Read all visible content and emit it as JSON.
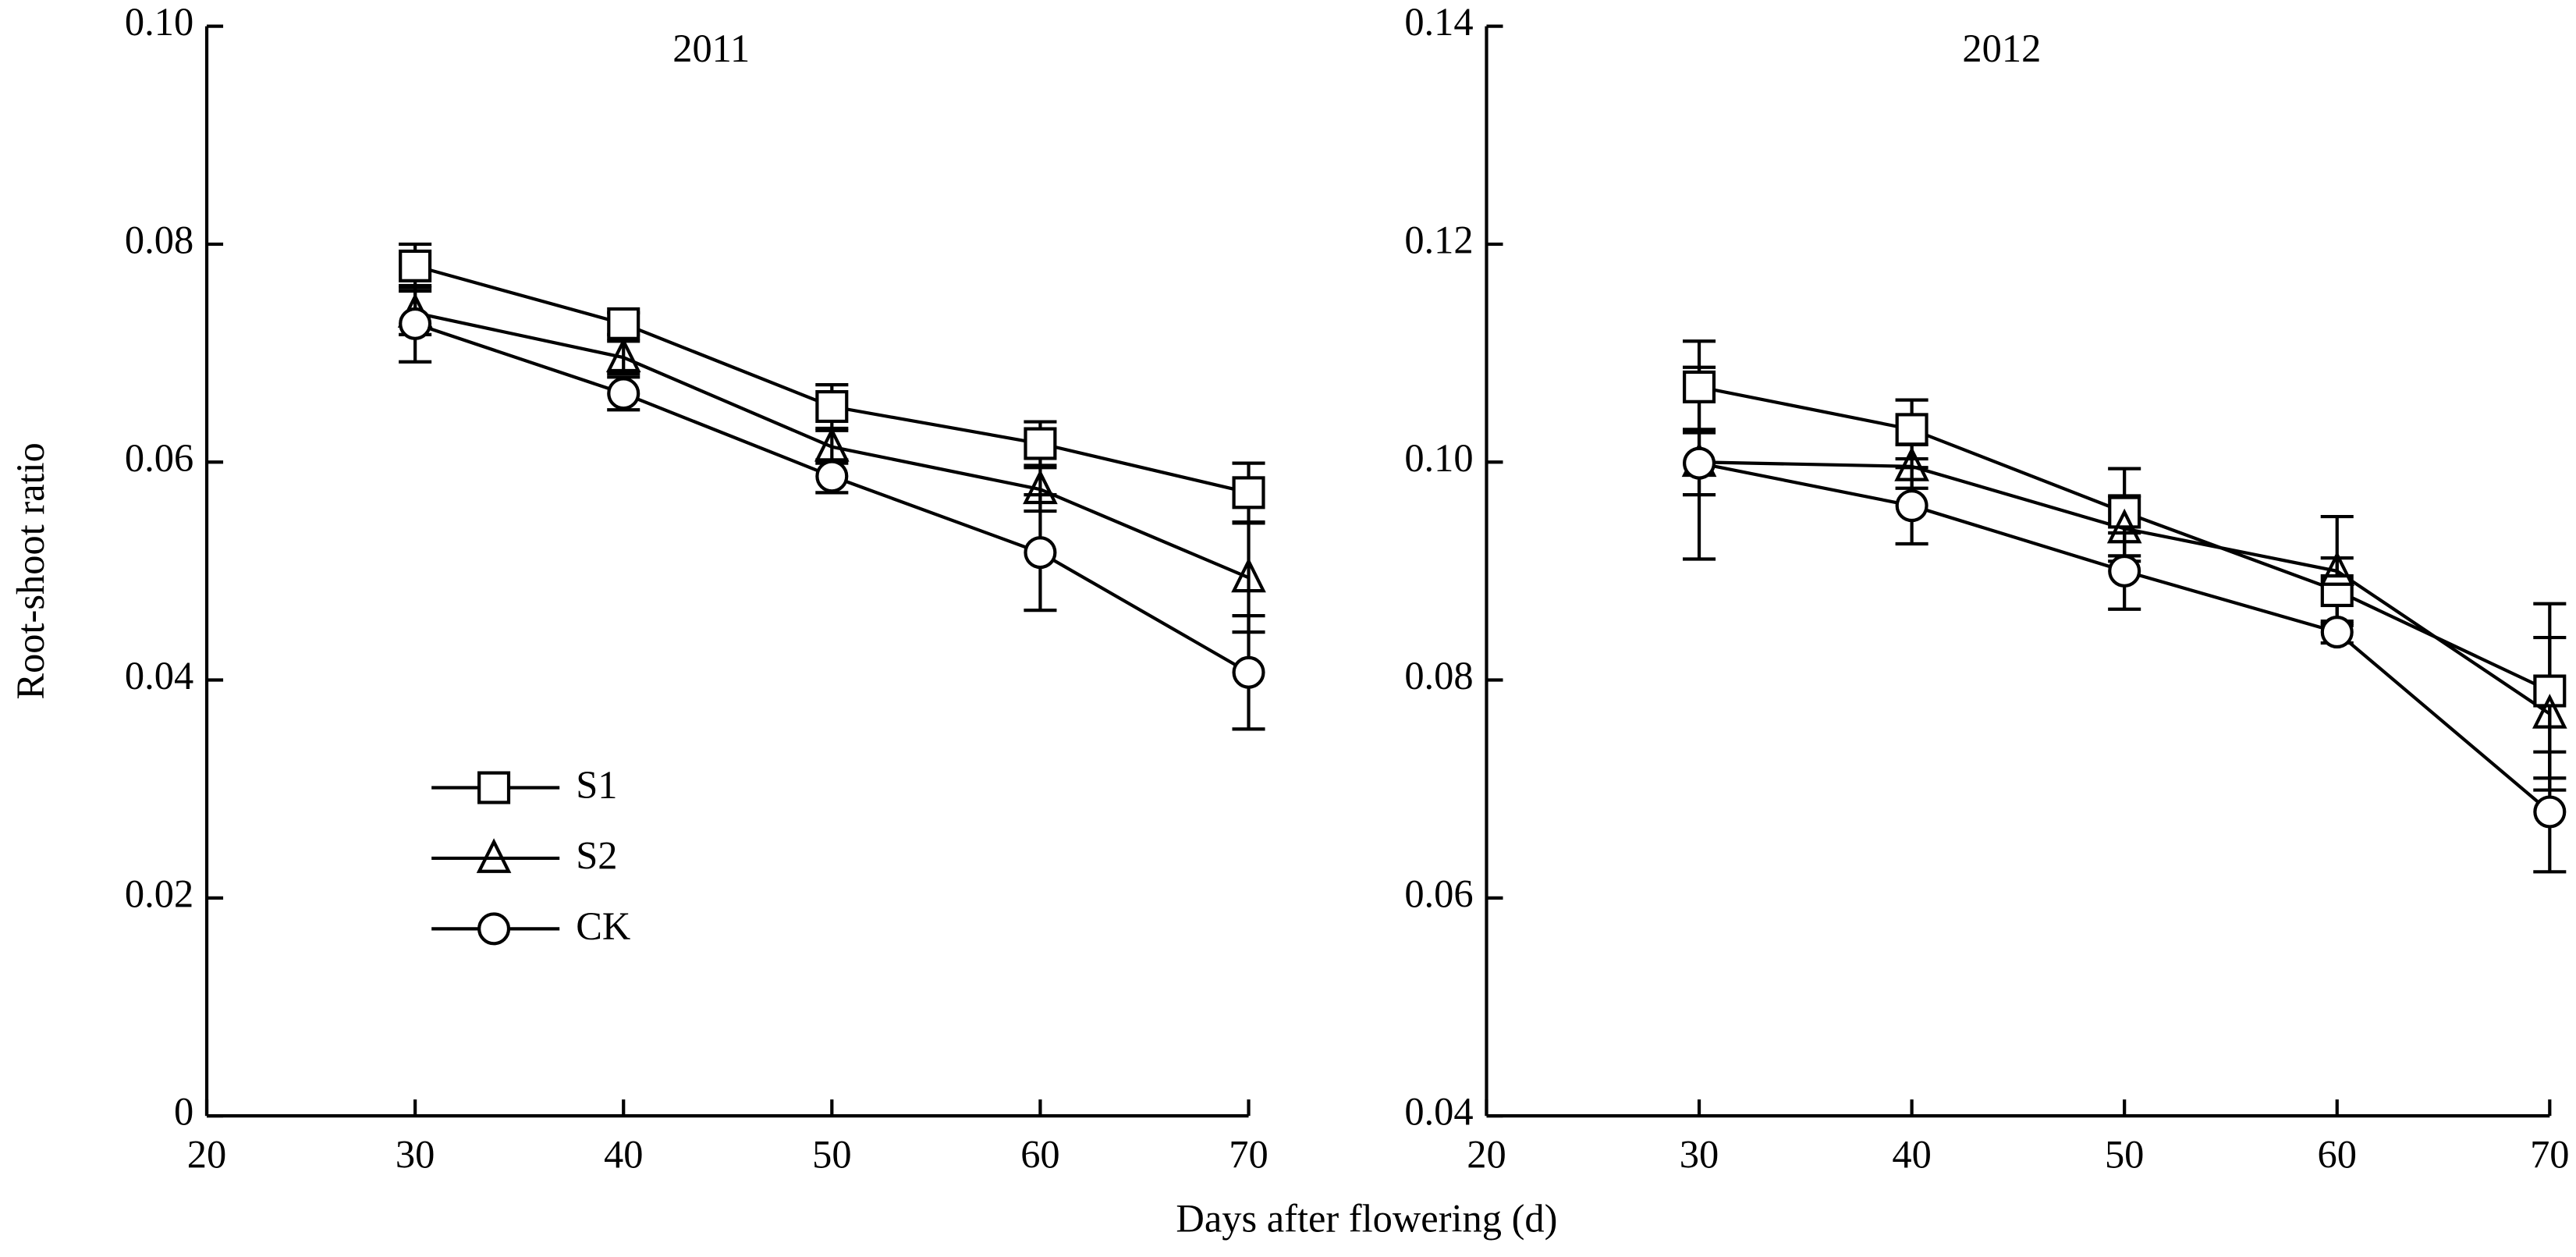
{
  "chart_data": [
    {
      "type": "line",
      "title": "2011",
      "ylabel": "Root-shoot ratio",
      "xlabel": "Days after flowering (d)",
      "xlim": [
        20,
        70
      ],
      "xticks": [
        20,
        30,
        40,
        50,
        60,
        70
      ],
      "ylim": [
        0,
        0.1
      ],
      "yticks": [
        0,
        0.02,
        0.04,
        0.06,
        0.08,
        {
          "value": 0.1,
          "label": "0.10"
        }
      ],
      "x": [
        30,
        40,
        50,
        60,
        70
      ],
      "legend": "lower left",
      "series": [
        {
          "name": "S1",
          "marker": "square",
          "color": "#000000",
          "values": [
            0.078,
            0.0727,
            0.0651,
            0.0617,
            0.0572
          ],
          "errors": [
            0.002,
            0.001,
            0.002,
            0.002,
            0.0027
          ]
        },
        {
          "name": "S2",
          "marker": "triangle",
          "color": "#000000",
          "values": [
            0.0737,
            0.0696,
            0.0614,
            0.0575,
            0.0494
          ],
          "errors": [
            0.002,
            0.0015,
            0.0015,
            0.002,
            0.005
          ]
        },
        {
          "name": "CK",
          "marker": "circle",
          "color": "#000000",
          "values": [
            0.0727,
            0.0663,
            0.0587,
            0.0517,
            0.0407
          ],
          "errors": [
            0.0035,
            0.0015,
            0.0015,
            0.0053,
            0.0052
          ]
        }
      ]
    },
    {
      "type": "line",
      "title": "2012",
      "xlim": [
        20,
        70
      ],
      "xticks": [
        20,
        30,
        40,
        50,
        60,
        70
      ],
      "ylim": [
        0.04,
        0.14
      ],
      "yticks": [
        0.04,
        0.06,
        0.08,
        {
          "value": 0.1,
          "label": "0.10"
        },
        0.12,
        0.14
      ],
      "x": [
        30,
        40,
        50,
        60,
        70
      ],
      "series": [
        {
          "marker": "square",
          "color": "#000000",
          "values": [
            0.1069,
            0.103,
            0.0954,
            0.0882,
            0.079
          ],
          "errors": [
            0.0042,
            0.0027,
            0.004,
            0.003,
            0.008
          ]
        },
        {
          "marker": "triangle",
          "color": "#000000",
          "values": [
            0.1,
            0.0996,
            0.0939,
            0.09,
            0.0769
          ],
          "errors": [
            0.003,
            0.002,
            0.003,
            0.005,
            0.007
          ]
        },
        {
          "marker": "circle",
          "color": "#000000",
          "values": [
            0.0999,
            0.096,
            0.09,
            0.0844,
            0.0679
          ],
          "errors": [
            0.0088,
            0.0035,
            0.0035,
            0.001,
            0.0055
          ]
        }
      ]
    }
  ]
}
